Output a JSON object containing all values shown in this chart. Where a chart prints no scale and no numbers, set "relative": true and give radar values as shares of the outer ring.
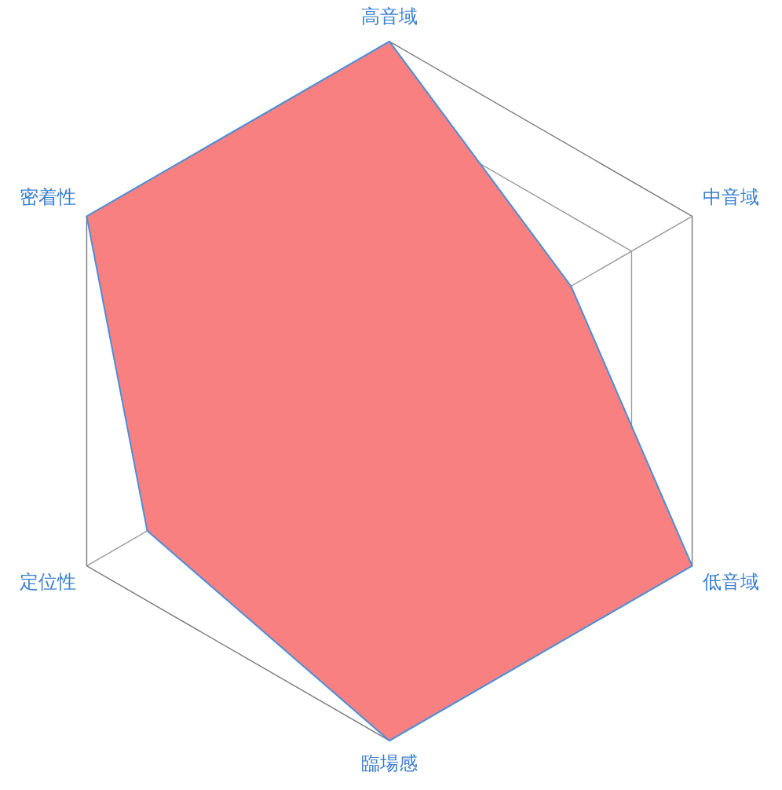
{
  "chart_data": {
    "type": "radar",
    "relative": true,
    "categories": [
      "高音域",
      "中音域",
      "低音域",
      "臨場感",
      "定位性",
      "密着性"
    ],
    "series": [
      {
        "color": "#f98080",
        "values": [
          1,
          0.6,
          1,
          1,
          0.8,
          1
        ]
      }
    ],
    "marker": "none",
    "legend": false
  }
}
